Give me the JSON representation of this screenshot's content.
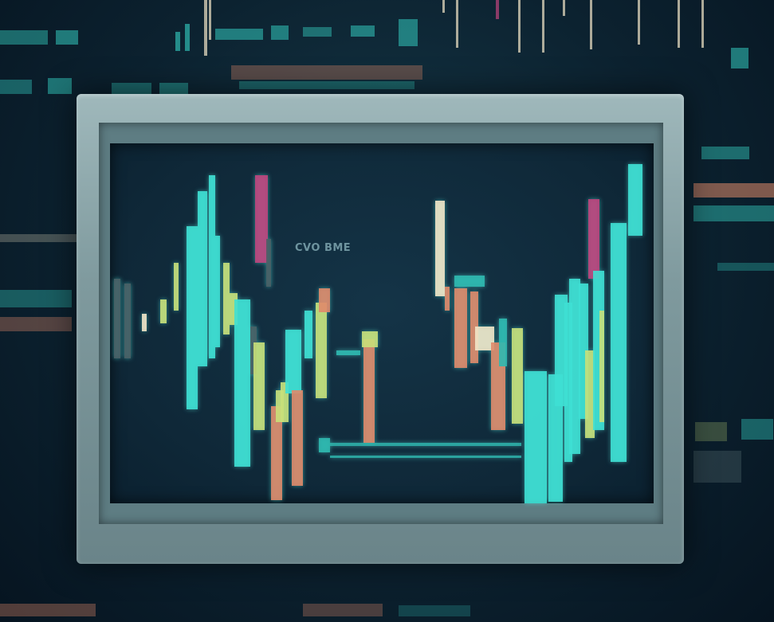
{
  "screen": {
    "label": "CVO BME"
  },
  "colors": {
    "background": "#0c2230",
    "screen": "#12303f",
    "cyan": "#3fe0d4",
    "teal": "#2fb9b0",
    "lime": "#c9e07a",
    "salmon": "#e08a6a",
    "magenta": "#c0457e",
    "cream": "#f2e6c8",
    "grey": "#4a6166"
  },
  "icons": []
}
